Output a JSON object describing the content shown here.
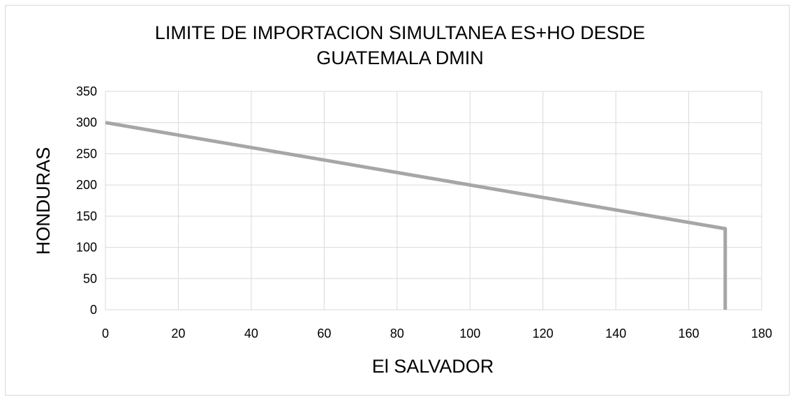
{
  "chart_data": {
    "type": "line",
    "title_lines": [
      "LIMITE DE IMPORTACION SIMULTANEA ES+HO DESDE",
      "GUATEMALA DMIN"
    ],
    "xlabel": "El SALVADOR",
    "ylabel": "HONDURAS",
    "xlim": [
      0,
      180
    ],
    "ylim": [
      0,
      350
    ],
    "x_ticks": [
      0,
      20,
      40,
      60,
      80,
      100,
      120,
      140,
      160,
      180
    ],
    "y_ticks": [
      0,
      50,
      100,
      150,
      200,
      250,
      300,
      350
    ],
    "grid": true,
    "legend": "none",
    "series": [
      {
        "color": "#a6a6a6",
        "x": [
          0,
          170,
          170
        ],
        "y": [
          300,
          130,
          0
        ]
      }
    ]
  },
  "colors": {
    "gridline": "#d9d9d9",
    "border": "#d9d9d9",
    "series": "#a6a6a6"
  }
}
